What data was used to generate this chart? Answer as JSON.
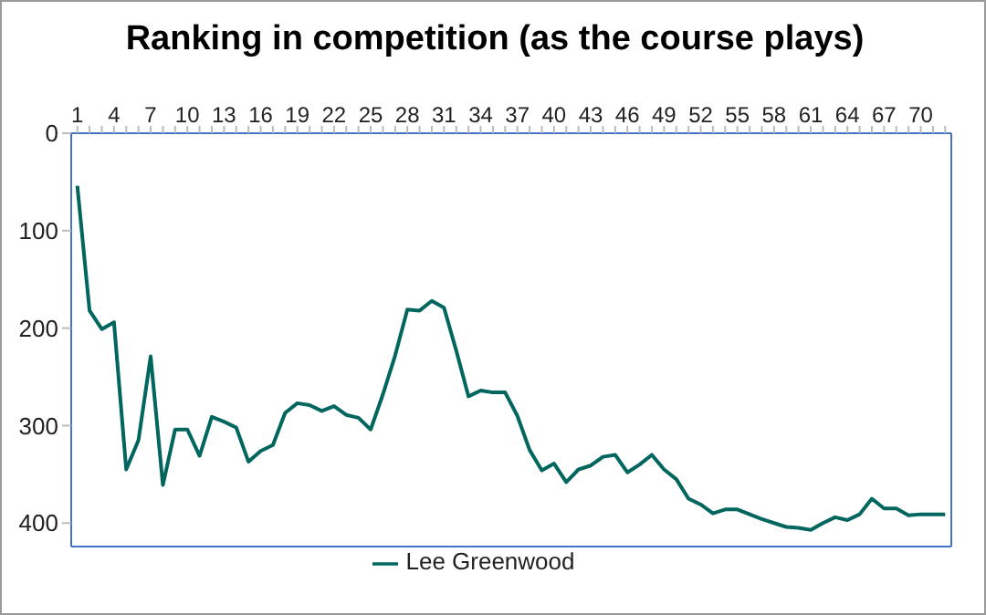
{
  "chart_data": {
    "type": "line",
    "title": "Ranking in competition (as the course plays)",
    "categories": [
      "1",
      null,
      null,
      "4",
      null,
      null,
      "7",
      null,
      null,
      "10",
      null,
      null,
      "13",
      null,
      null,
      "16",
      null,
      null,
      "19",
      null,
      null,
      "22",
      null,
      null,
      "25",
      null,
      null,
      "28",
      null,
      null,
      "31",
      null,
      null,
      "34",
      null,
      null,
      "37",
      null,
      null,
      "40",
      null,
      null,
      "43",
      null,
      null,
      "46",
      null,
      null,
      "49",
      null,
      null,
      "52",
      null,
      null,
      "55",
      null,
      null,
      "58",
      null,
      null,
      "61",
      null,
      null,
      "64",
      null,
      null,
      "67",
      null,
      null,
      "70",
      null,
      null
    ],
    "series": [
      {
        "name": "Lee Greenwood",
        "color": "#00665e",
        "values": [
          54,
          182,
          201,
          194,
          345,
          315,
          229,
          361,
          304,
          304,
          331,
          291,
          296,
          302,
          337,
          326,
          320,
          287,
          277,
          279,
          285,
          280,
          289,
          292,
          304,
          268,
          228,
          181,
          182,
          172,
          179,
          223,
          270,
          264,
          266,
          266,
          290,
          325,
          346,
          339,
          358,
          345,
          341,
          332,
          330,
          348,
          340,
          330,
          345,
          355,
          375,
          381,
          390,
          386,
          386,
          391,
          396,
          400,
          404,
          405,
          407,
          400,
          394,
          397,
          391,
          375,
          385,
          385,
          392,
          391,
          391,
          391
        ]
      }
    ],
    "ylim": [
      424,
      0
    ],
    "yticks": [
      0,
      100,
      200,
      300,
      400
    ],
    "grid": false,
    "legend": "bottom",
    "marker": "none",
    "line_style": "solid"
  }
}
